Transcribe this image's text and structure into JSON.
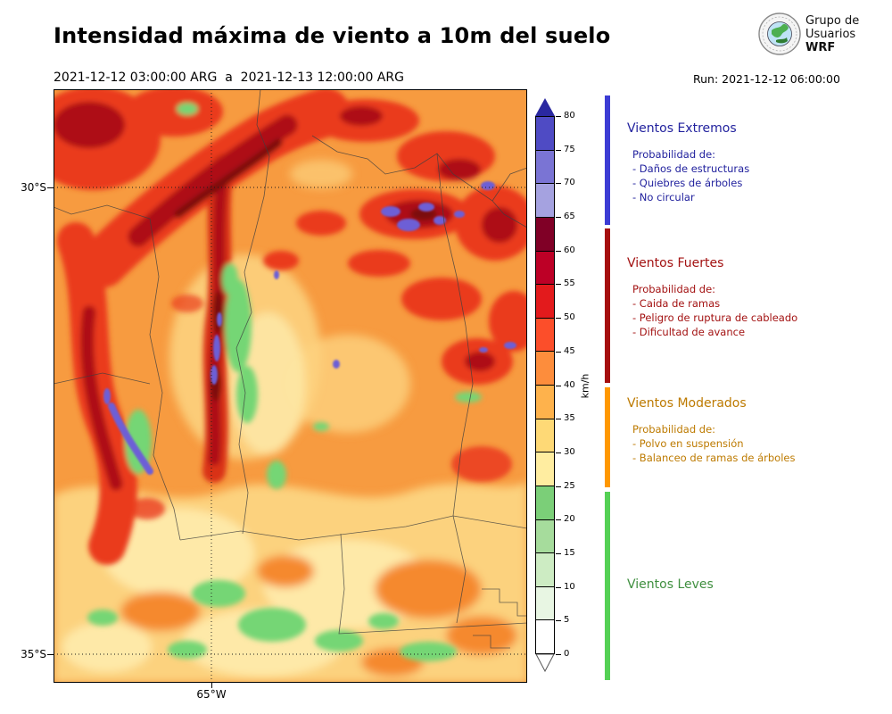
{
  "header": {
    "title": "Intensidad máxima de viento a 10m del suelo",
    "date_range": "2021-12-12 03:00:00 ARG  a  2021-12-13 12:00:00 ARG",
    "run_label": "Run: 2021-12-12 06:00:00",
    "logo": {
      "line1": "Grupo de",
      "line2": "Usuarios",
      "line3": "WRF"
    }
  },
  "map": {
    "lat_tick_30": "30°S",
    "lat_tick_35": "35°S",
    "lon_tick_65": "65°W"
  },
  "colorbar": {
    "unit": "km/h"
  },
  "legend": {
    "categories": [
      {
        "name": "Vientos Extremos",
        "text_color": "#22229e",
        "bar_color": "#3c3cd4",
        "probability_label": "Probabilidad de:",
        "items": [
          "- Daños de estructuras",
          "- Quiebres de árboles",
          "- No circular"
        ]
      },
      {
        "name": "Vientos Fuertes",
        "text_color": "#a31212",
        "bar_color": "#a50f0f",
        "probability_label": "Probabilidad de:",
        "items": [
          "- Caida de ramas",
          "- Peligro de ruptura de cableado",
          "- Dificultad de avance"
        ]
      },
      {
        "name": "Vientos Moderados",
        "text_color": "#bd7a00",
        "bar_color": "#ff9800",
        "probability_label": "Probabilidad de:",
        "items": [
          "- Polvo en suspensión",
          "- Balanceo de ramas de árboles"
        ]
      },
      {
        "name": "Vientos Leves",
        "text_color": "#3f8f3f",
        "bar_color": "#55d055",
        "items": []
      }
    ]
  },
  "chart_data": {
    "type": "heatmap",
    "title": "Intensidad máxima de viento a 10m del suelo",
    "period": {
      "start": "2021-12-12 03:00:00 ARG",
      "end": "2021-12-13 12:00:00 ARG"
    },
    "model_run": "2021-12-12 06:00:00",
    "unit": "km/h",
    "colorbar_ticks": [
      0,
      5,
      10,
      15,
      20,
      25,
      30,
      35,
      40,
      45,
      50,
      55,
      60,
      65,
      70,
      75,
      80
    ],
    "colorbar_colors": [
      "#ffffff",
      "#e8f6e3",
      "#cdecc3",
      "#a6dc9c",
      "#7bcf78",
      "#ffeda0",
      "#fed976",
      "#feb24c",
      "#fd8d3c",
      "#fc4e2a",
      "#e31a1c",
      "#bd0026",
      "#800026",
      "#a5a2e0",
      "#7a74d4",
      "#4f4bc4"
    ],
    "colorbar_over_color": "#2a28a0",
    "colorbar_under_color": "#ffffff",
    "axis": {
      "lat_ticks": [
        "30°S",
        "35°S"
      ],
      "lon_ticks": [
        "65°W"
      ]
    },
    "wind_categories": [
      {
        "name": "Vientos Leves",
        "range_kmh": [
          0,
          25
        ]
      },
      {
        "name": "Vientos Moderados",
        "range_kmh": [
          25,
          45
        ]
      },
      {
        "name": "Vientos Fuertes",
        "range_kmh": [
          45,
          65
        ]
      },
      {
        "name": "Vientos Extremos",
        "range_kmh": [
          65,
          80
        ]
      }
    ]
  }
}
